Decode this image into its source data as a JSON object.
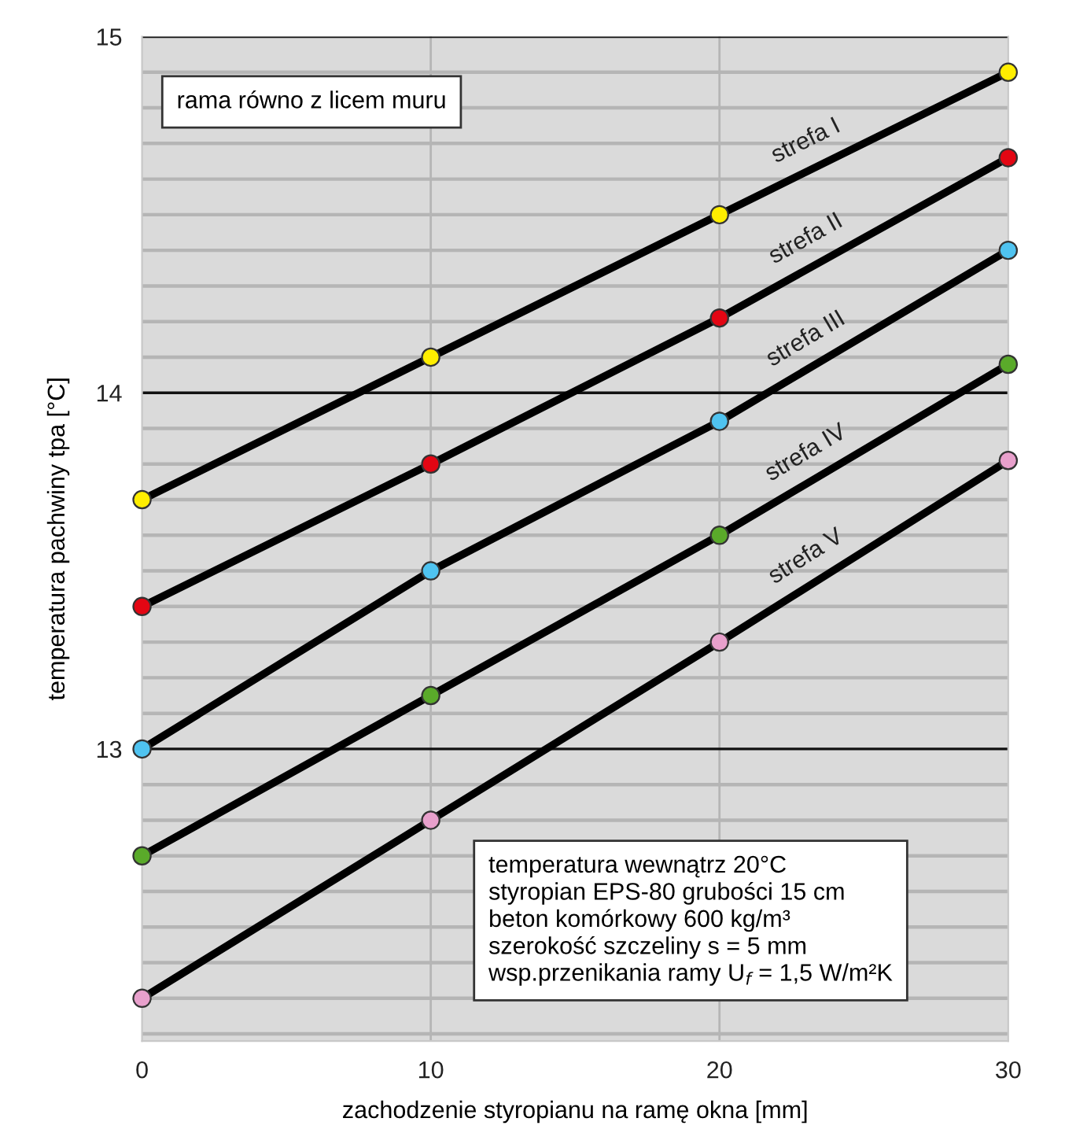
{
  "chart_data": {
    "type": "line",
    "xlabel": "zachodzenie styropianu na ramę okna [mm]",
    "ylabel": "temperatura pachwiny tpa [°C]",
    "x": [
      0,
      10,
      20,
      30
    ],
    "series": [
      {
        "name": "strefa I",
        "color": "#ffee00",
        "values": [
          13.7,
          14.1,
          14.5,
          14.9
        ]
      },
      {
        "name": "strefa II",
        "color": "#e30613",
        "values": [
          13.4,
          13.8,
          14.21,
          14.66
        ]
      },
      {
        "name": "strefa III",
        "color": "#4fc3f0",
        "values": [
          13.0,
          13.5,
          13.92,
          14.4
        ]
      },
      {
        "name": "strefa IV",
        "color": "#5aaa2a",
        "values": [
          12.7,
          13.15,
          13.6,
          14.08
        ]
      },
      {
        "name": "strefa V",
        "color": "#e8a0cc",
        "values": [
          12.3,
          12.8,
          13.3,
          13.81
        ]
      }
    ],
    "xlim": [
      0,
      30
    ],
    "ylim": [
      12.18,
      15
    ],
    "xticks": [
      0,
      10,
      20,
      30
    ],
    "yticks": [
      {
        "value": 12.2,
        "label": null
      },
      {
        "value": 12.3,
        "label": null
      },
      {
        "value": 12.4,
        "label": null
      },
      {
        "value": 12.5,
        "label": null
      },
      {
        "value": 12.6,
        "label": null
      },
      {
        "value": 12.7,
        "label": null
      },
      {
        "value": 12.8,
        "label": null
      },
      {
        "value": 12.9,
        "label": null
      },
      13,
      {
        "value": 13.1,
        "label": null
      },
      {
        "value": 13.2,
        "label": null
      },
      {
        "value": 13.3,
        "label": null
      },
      {
        "value": 13.4,
        "label": null
      },
      {
        "value": 13.5,
        "label": null
      },
      {
        "value": 13.6,
        "label": null
      },
      {
        "value": 13.7,
        "label": null
      },
      {
        "value": 13.8,
        "label": null
      },
      {
        "value": 13.9,
        "label": null
      },
      14,
      {
        "value": 14.1,
        "label": null
      },
      {
        "value": 14.2,
        "label": null
      },
      {
        "value": 14.3,
        "label": null
      },
      {
        "value": 14.4,
        "label": null
      },
      {
        "value": 14.5,
        "label": null
      },
      {
        "value": 14.6,
        "label": null
      },
      {
        "value": 14.7,
        "label": null
      },
      {
        "value": 14.8,
        "label": null
      },
      {
        "value": 14.9,
        "label": null
      },
      15
    ],
    "grid": true,
    "marker": "circle",
    "line_style": "solid",
    "legend": false,
    "annotations": [
      "rama równo z licem muru",
      "temperatura wewnątrz 20°C\nstyropian EPS-80 grubości 15 cm\nbeton komórkowy 600 kg/m³\nszerokość szczeliny s = 5 mm\nwsp.przenikania ramy U$_{f}$ = 1,5 W/m²K"
    ]
  }
}
